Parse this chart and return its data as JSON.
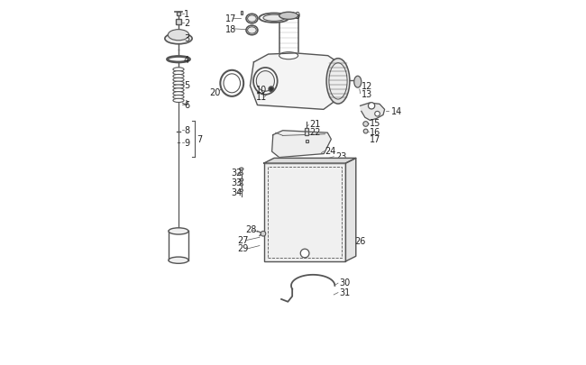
{
  "bg_color": "#ffffff",
  "line_color": "#555555",
  "text_color": "#222222",
  "lw": 0.8
}
